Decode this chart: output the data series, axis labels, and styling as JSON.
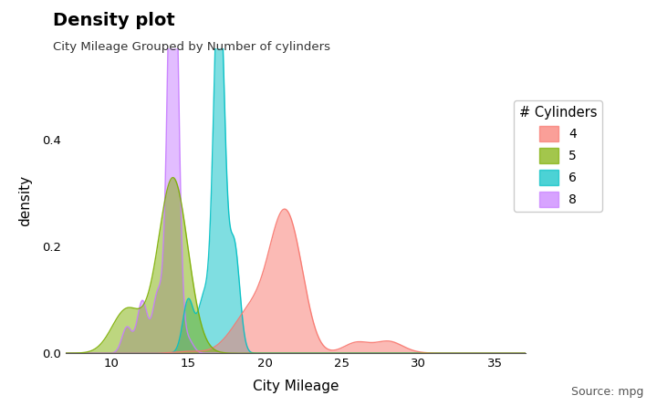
{
  "title": "Density plot",
  "subtitle": "City Mileage Grouped by Number of cylinders",
  "xlabel": "City Mileage",
  "ylabel": "density",
  "source": "Source: mpg",
  "legend_title": "# Cylinders",
  "colors": {
    "4": "#F8766D",
    "5": "#7CAE00",
    "6": "#00BFC4",
    "8": "#C77CFF"
  },
  "fill_alpha": 0.5,
  "xlim": [
    7,
    37
  ],
  "ylim": [
    0,
    0.57
  ],
  "yticks": [
    0.0,
    0.2,
    0.4
  ],
  "xticks": [
    10,
    15,
    20,
    25,
    30,
    35
  ],
  "cyl4_data": [
    18,
    21,
    20,
    21,
    22,
    18,
    19,
    21,
    22,
    19,
    20,
    18,
    21,
    21,
    20,
    22,
    28,
    19,
    18,
    20,
    19,
    17,
    15,
    19,
    21,
    22,
    21,
    21,
    20,
    19,
    20,
    21,
    21,
    21,
    19,
    21,
    22,
    21,
    19,
    22,
    21,
    19,
    20,
    21,
    20,
    22,
    21,
    20,
    21,
    22,
    19,
    18,
    21,
    19,
    21,
    21,
    21,
    20,
    19,
    21,
    21,
    21,
    21,
    21,
    19,
    21,
    21,
    21,
    21,
    19,
    18,
    20,
    21,
    18,
    20,
    21,
    21,
    21,
    22,
    21,
    20,
    22,
    21,
    21,
    21,
    21,
    20,
    21,
    21,
    21,
    21,
    22,
    21,
    21,
    21,
    22,
    28,
    29,
    19,
    21,
    21,
    21,
    21,
    21,
    22,
    22,
    22,
    22,
    22,
    22,
    22,
    22,
    22,
    22,
    22,
    22,
    22,
    22,
    22,
    22,
    22,
    22,
    22,
    22,
    22,
    22,
    22,
    22,
    22,
    22,
    22,
    22,
    26,
    28,
    26,
    26,
    26,
    26,
    28,
    28,
    26,
    28
  ],
  "cyl5_data": [
    14,
    14,
    14,
    14,
    11
  ],
  "cyl6_data": [
    18,
    18,
    18,
    16,
    17,
    15,
    18,
    18,
    18,
    16,
    17,
    17,
    18,
    15,
    17,
    16,
    17,
    16,
    15,
    17,
    17,
    17,
    17,
    17,
    17,
    17,
    17,
    17,
    17,
    17,
    15,
    15,
    17,
    17,
    17,
    17,
    17,
    18,
    18,
    17,
    17,
    18,
    17,
    16,
    17,
    17,
    17,
    17,
    17,
    17,
    17,
    17,
    17,
    17,
    17,
    17
  ],
  "cyl8_data": [
    14,
    13,
    11,
    14,
    14,
    14,
    14,
    15,
    12,
    11,
    14,
    14,
    13,
    12,
    13,
    12,
    14,
    14,
    13,
    15,
    11,
    14,
    13,
    14,
    14,
    14,
    14,
    14,
    14,
    14,
    12,
    12,
    12,
    12,
    14,
    14,
    14,
    14,
    14,
    14,
    14,
    14,
    14,
    14,
    14,
    14,
    14,
    14,
    14,
    13,
    13,
    14,
    13,
    12,
    11,
    13,
    14,
    14,
    14,
    14,
    14,
    14,
    14,
    14,
    14,
    14,
    14,
    14,
    14,
    14,
    14,
    14,
    14,
    14,
    14,
    14,
    14,
    14,
    14,
    14,
    14,
    14,
    14,
    14,
    14,
    14,
    14,
    14,
    14,
    14,
    14,
    14,
    14,
    14,
    14,
    14,
    14,
    14,
    14,
    14
  ]
}
